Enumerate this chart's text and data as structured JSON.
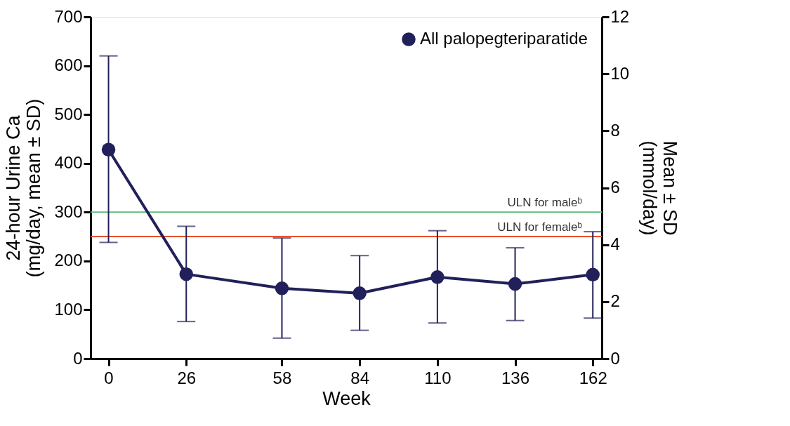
{
  "chart_data": {
    "type": "line",
    "xlabel": "Week",
    "ylabel": "24-hour Urine Ca\n(mg/day, mean ± SD)",
    "y2label": "Mean ± SD\n(mmol/day)",
    "x": [
      0,
      26,
      58,
      84,
      110,
      136,
      162
    ],
    "series": [
      {
        "name": "All palopegteriparatide",
        "color": "#22205a",
        "values": [
          428,
          173,
          144,
          134,
          167,
          153,
          172
        ],
        "errors": [
          [
            238,
            620
          ],
          [
            76,
            271
          ],
          [
            42,
            247
          ],
          [
            58,
            211
          ],
          [
            73,
            262
          ],
          [
            78,
            227
          ],
          [
            83,
            260
          ]
        ]
      }
    ],
    "xlim": [
      -6,
      165
    ],
    "xticks": [
      0,
      26,
      58,
      84,
      110,
      136,
      162
    ],
    "ylim": [
      0,
      700
    ],
    "yticks": [
      0,
      100,
      200,
      300,
      400,
      500,
      600,
      700
    ],
    "y2lim": [
      0,
      12
    ],
    "y2ticks": [
      0,
      2,
      4,
      6,
      8,
      10,
      12
    ],
    "ref_lines": [
      {
        "axis": "y",
        "value": 300,
        "label": "ULN for maleᵇ",
        "color": "#5cbf7f"
      },
      {
        "axis": "y",
        "value": 250,
        "label": "ULN for femaleᵇ",
        "color": "#e8502a"
      }
    ],
    "grid": false,
    "legend": "top right",
    "marker": "circle",
    "line_style": "solid"
  }
}
